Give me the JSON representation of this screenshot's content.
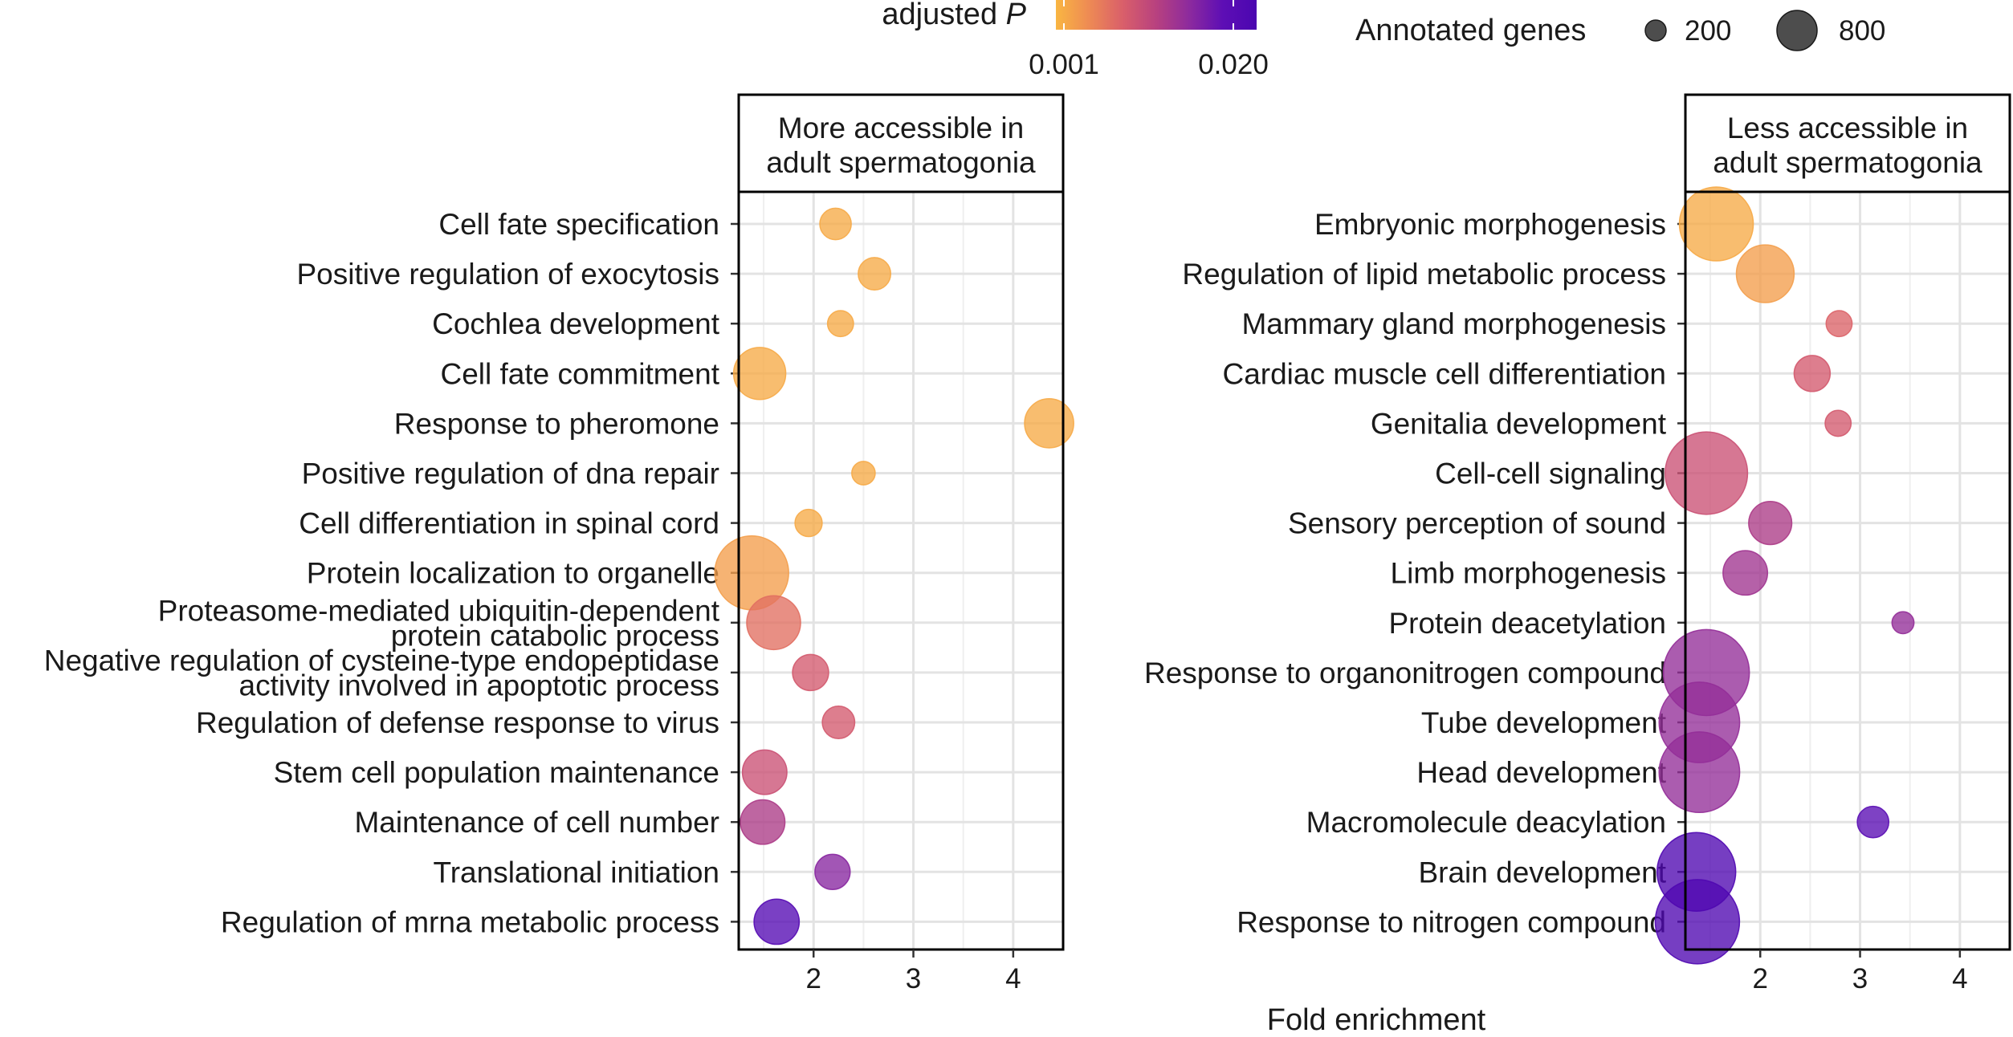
{
  "chart_data": {
    "type": "scatter",
    "x_axis_label": "Fold enrichment",
    "x_ticks": [
      2,
      3,
      4
    ],
    "xlim": [
      1.25,
      4.5
    ],
    "grid": true,
    "color_legend": {
      "title": "adjusted",
      "title_italic": "P",
      "ticks": [
        "0.001",
        "0.020"
      ],
      "tick_values": [
        0.001,
        0.02
      ],
      "range": [
        0.0,
        0.022
      ],
      "colors": [
        "#F9B642",
        "#EE8A54",
        "#D95F6A",
        "#B8417F",
        "#8C2A9E",
        "#5D0EB5",
        "#4B06B0"
      ]
    },
    "size_legend": {
      "title": "Annotated genes",
      "labels": [
        "200",
        "800"
      ],
      "values": [
        200,
        800
      ]
    },
    "panels": [
      {
        "title_line1": "More accessible in",
        "title_line2": "adult spermatogonia",
        "points": [
          {
            "term_lines": [
              "Cell fate specification"
            ],
            "fold": 2.22,
            "padj": 0.001,
            "genes": 150
          },
          {
            "term_lines": [
              "Positive regulation of exocytosis"
            ],
            "fold": 2.61,
            "padj": 0.001,
            "genes": 160
          },
          {
            "term_lines": [
              "Cochlea development"
            ],
            "fold": 2.27,
            "padj": 0.001,
            "genes": 100
          },
          {
            "term_lines": [
              "Cell fate commitment"
            ],
            "fold": 1.46,
            "padj": 0.001,
            "genes": 430
          },
          {
            "term_lines": [
              "Response to pheromone"
            ],
            "fold": 4.36,
            "padj": 0.001,
            "genes": 380
          },
          {
            "term_lines": [
              "Positive regulation of dna repair"
            ],
            "fold": 2.5,
            "padj": 0.001,
            "genes": 80
          },
          {
            "term_lines": [
              "Cell differentiation in spinal cord"
            ],
            "fold": 1.95,
            "padj": 0.001,
            "genes": 110
          },
          {
            "term_lines": [
              "Protein localization to organelle"
            ],
            "fold": 1.38,
            "padj": 0.002,
            "genes": 880
          },
          {
            "term_lines": [
              "Proteasome-mediated ubiquitin-dependent",
              "protein catabolic process"
            ],
            "fold": 1.6,
            "padj": 0.006,
            "genes": 460
          },
          {
            "term_lines": [
              "Negative regulation of cysteine-type endopeptidase",
              "activity involved in apoptotic process"
            ],
            "fold": 1.97,
            "padj": 0.008,
            "genes": 200
          },
          {
            "term_lines": [
              "Regulation of defense response to virus"
            ],
            "fold": 2.25,
            "padj": 0.008,
            "genes": 160
          },
          {
            "term_lines": [
              "Stem cell population maintenance"
            ],
            "fold": 1.51,
            "padj": 0.009,
            "genes": 310
          },
          {
            "term_lines": [
              "Maintenance of cell number"
            ],
            "fold": 1.49,
            "padj": 0.012,
            "genes": 310
          },
          {
            "term_lines": [
              "Translational initiation"
            ],
            "fold": 2.19,
            "padj": 0.015,
            "genes": 190
          },
          {
            "term_lines": [
              "Regulation of mrna metabolic process"
            ],
            "fold": 1.63,
            "padj": 0.02,
            "genes": 320
          }
        ]
      },
      {
        "title_line1": "Less accessible in",
        "title_line2": "adult spermatogonia",
        "points": [
          {
            "term_lines": [
              "Embryonic morphogenesis"
            ],
            "fold": 1.56,
            "padj": 0.001,
            "genes": 880
          },
          {
            "term_lines": [
              "Regulation of lipid metabolic process"
            ],
            "fold": 2.05,
            "padj": 0.002,
            "genes": 530
          },
          {
            "term_lines": [
              "Mammary gland morphogenesis"
            ],
            "fold": 2.79,
            "padj": 0.007,
            "genes": 100
          },
          {
            "term_lines": [
              "Cardiac muscle cell differentiation"
            ],
            "fold": 2.52,
            "padj": 0.008,
            "genes": 200
          },
          {
            "term_lines": [
              "Genitalia development"
            ],
            "fold": 2.78,
            "padj": 0.008,
            "genes": 100
          },
          {
            "term_lines": [
              "Cell-cell signaling"
            ],
            "fold": 1.46,
            "padj": 0.009,
            "genes": 1100
          },
          {
            "term_lines": [
              "Sensory perception of sound"
            ],
            "fold": 2.1,
            "padj": 0.012,
            "genes": 290
          },
          {
            "term_lines": [
              "Limb morphogenesis"
            ],
            "fold": 1.85,
            "padj": 0.013,
            "genes": 310
          },
          {
            "term_lines": [
              "Protein deacetylation"
            ],
            "fold": 3.43,
            "padj": 0.014,
            "genes": 70
          },
          {
            "term_lines": [
              "Response to organonitrogen compound"
            ],
            "fold": 1.46,
            "padj": 0.014,
            "genes": 1200
          },
          {
            "term_lines": [
              "Tube development"
            ],
            "fold": 1.39,
            "padj": 0.014,
            "genes": 1050
          },
          {
            "term_lines": [
              "Head development"
            ],
            "fold": 1.39,
            "padj": 0.014,
            "genes": 1050
          },
          {
            "term_lines": [
              "Macromolecule deacylation"
            ],
            "fold": 3.13,
            "padj": 0.019,
            "genes": 150
          },
          {
            "term_lines": [
              "Brain development"
            ],
            "fold": 1.36,
            "padj": 0.021,
            "genes": 1000
          },
          {
            "term_lines": [
              "Response to nitrogen compound"
            ],
            "fold": 1.37,
            "padj": 0.021,
            "genes": 1150
          }
        ]
      }
    ]
  }
}
